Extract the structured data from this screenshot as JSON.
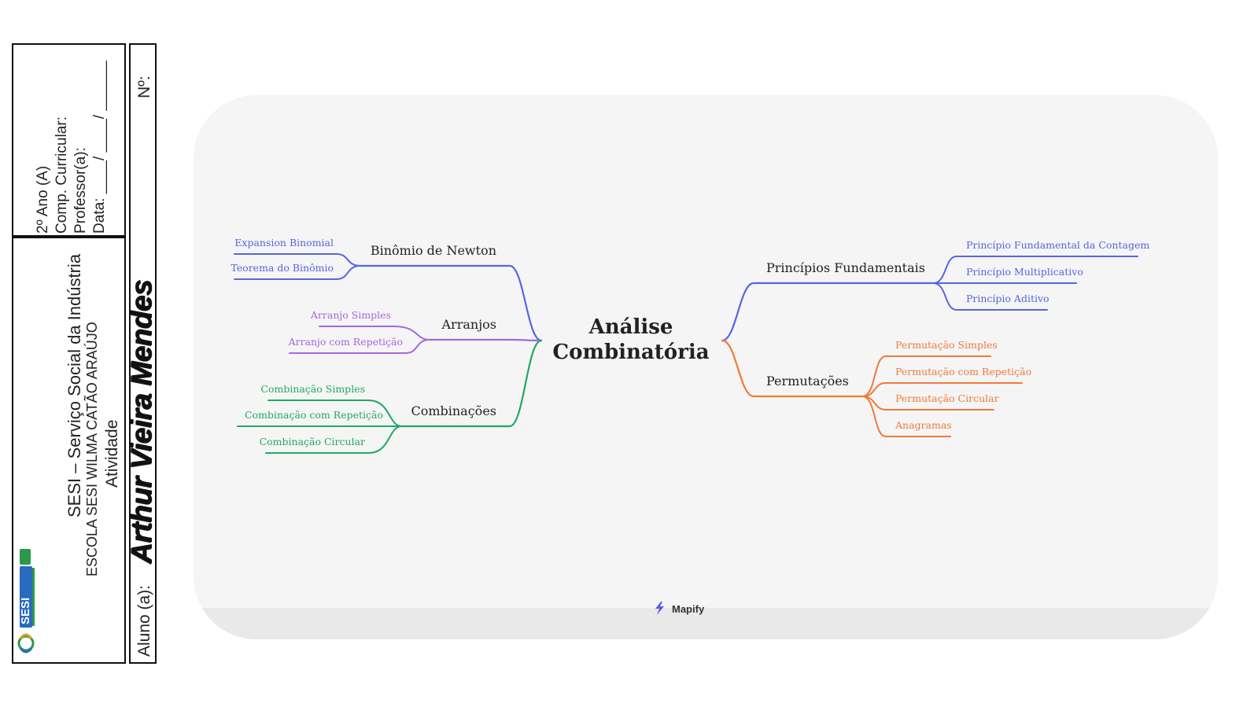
{
  "header": {
    "meta_lines": [
      "2º Ano (A)",
      "Comp. Curricular:",
      "Professor(a):",
      "Data: ____/ ____/ ______"
    ],
    "school_name": "SESI – Serviço Social da Indústria",
    "school_unit": "ESCOLA SESI WILMA CATÃO ARAÚJO",
    "activity": "Atividade",
    "student_label": "Aluno (a):",
    "student_name": "Arthur Vieira Mendes",
    "number_label": "Nº:",
    "logo_text": "SESI"
  },
  "mindmap": {
    "central": [
      "Análise",
      "Combinatória"
    ],
    "branches": [
      {
        "label": "Binômio de Newton",
        "color": "#5566e0",
        "children": [
          "Expansion Binomial",
          "Teorema do Binômio"
        ]
      },
      {
        "label": "Arranjos",
        "color": "#a468e0",
        "children": [
          "Arranjo Simples",
          "Arranjo com Repetição"
        ]
      },
      {
        "label": "Combinações",
        "color": "#22a866",
        "children": [
          "Combinação Simples",
          "Combinação com Repetição",
          "Combinação Circular"
        ]
      },
      {
        "label": "Princípios Fundamentais",
        "color": "#5566e0",
        "children": [
          "Princípio Fundamental da Contagem",
          "Princípio Multiplicativo",
          "Princípio Aditivo"
        ]
      },
      {
        "label": "Permutações",
        "color": "#f07a3a",
        "children": [
          "Permutação Simples",
          "Permutação com Repetição",
          "Permutação Circular",
          "Anagramas"
        ]
      }
    ],
    "brand": "Mapify"
  }
}
